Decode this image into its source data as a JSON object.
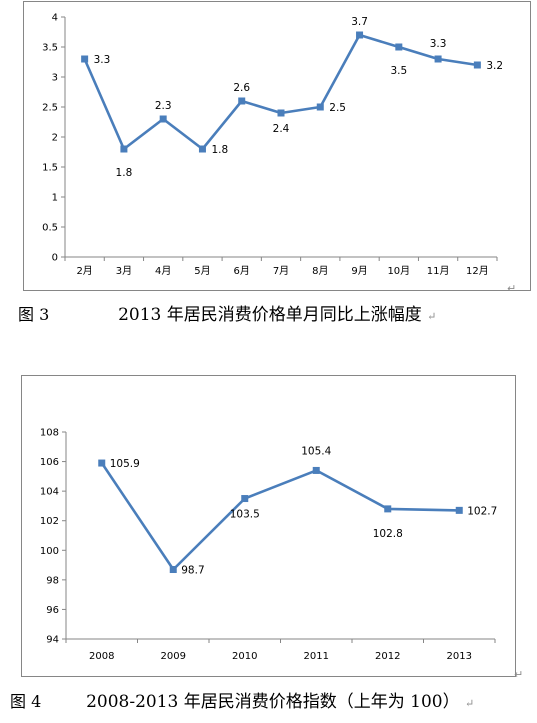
{
  "figures": [
    {
      "fig_label": "图 3",
      "caption": "2013 年居民消费价格单月同比上涨幅度"
    },
    {
      "fig_label": "图 4",
      "caption": "2008-2013 年居民消费价格指数（上年为 100）"
    }
  ],
  "return_mark": "↵",
  "chart_data": [
    {
      "type": "line",
      "title": "",
      "xlabel": "",
      "ylabel": "",
      "categories": [
        "2月",
        "3月",
        "4月",
        "5月",
        "6月",
        "7月",
        "8月",
        "9月",
        "10月",
        "11月",
        "12月"
      ],
      "series": [
        {
          "values": [
            3.3,
            1.8,
            2.3,
            1.8,
            2.6,
            2.4,
            2.5,
            3.7,
            3.5,
            3.3,
            3.2
          ]
        }
      ],
      "data_labels": [
        "3.3",
        "1.8",
        "2.3",
        "1.8",
        "2.6",
        "2.4",
        "2.5",
        "3.7",
        "3.5",
        "3.3",
        "3.2"
      ],
      "y_ticks": [
        "0",
        "0.5",
        "1",
        "1.5",
        "2",
        "2.5",
        "3",
        "3.5",
        "4"
      ],
      "ylim": [
        0,
        4
      ],
      "grid": false,
      "legend": "none",
      "line_color": "#4a7ebb",
      "marker_color": "#4a7ebb"
    },
    {
      "type": "line",
      "title": "",
      "xlabel": "",
      "ylabel": "",
      "categories": [
        "2008",
        "2009",
        "2010",
        "2011",
        "2012",
        "2013"
      ],
      "series": [
        {
          "values": [
            105.9,
            98.7,
            103.5,
            105.4,
            102.8,
            102.7
          ]
        }
      ],
      "data_labels": [
        "105.9",
        "98.7",
        "103.5",
        "105.4",
        "102.8",
        "102.7"
      ],
      "y_ticks": [
        "94",
        "96",
        "98",
        "100",
        "102",
        "104",
        "106",
        "108"
      ],
      "ylim": [
        94,
        108
      ],
      "grid": false,
      "legend": "none",
      "line_color": "#4a7ebb",
      "marker_color": "#4a7ebb"
    }
  ]
}
